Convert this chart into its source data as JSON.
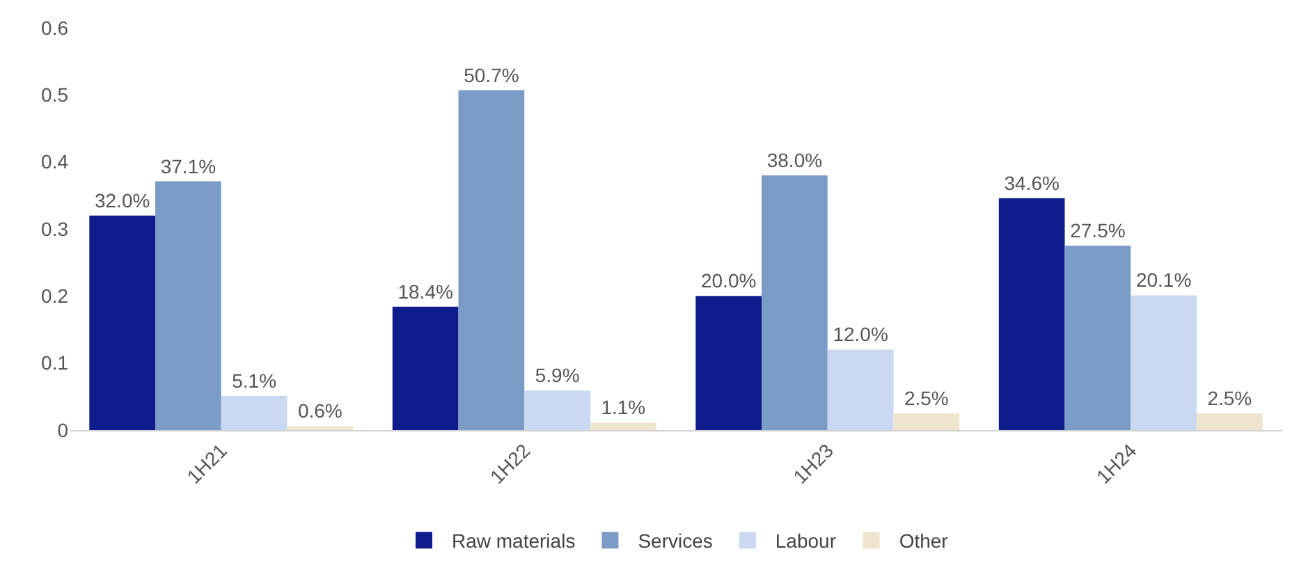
{
  "chart_data": {
    "type": "bar",
    "categories": [
      "1H21",
      "1H22",
      "1H23",
      "1H24"
    ],
    "series": [
      {
        "name": "Raw materials",
        "color": "#0f1c8c",
        "values": [
          0.32,
          0.184,
          0.2,
          0.346
        ],
        "value_labels": [
          "32.0%",
          "18.4%",
          "20.0%",
          "34.6%"
        ]
      },
      {
        "name": "Services",
        "color": "#7b9cc7",
        "values": [
          0.371,
          0.507,
          0.38,
          0.275
        ],
        "value_labels": [
          "37.1%",
          "50.7%",
          "38.0%",
          "27.5%"
        ]
      },
      {
        "name": "Labour",
        "color": "#cad8f1",
        "values": [
          0.051,
          0.059,
          0.12,
          0.201
        ],
        "value_labels": [
          "5.1%",
          "5.9%",
          "12.0%",
          "20.1%"
        ]
      },
      {
        "name": "Other",
        "color": "#efe5cf",
        "values": [
          0.006,
          0.011,
          0.025,
          0.025
        ],
        "value_labels": [
          "0.6%",
          "1.1%",
          "2.5%",
          "2.5%"
        ]
      }
    ],
    "ylim": [
      0,
      0.6
    ],
    "yticks": [
      0,
      0.1,
      0.2,
      0.3,
      0.4,
      0.5,
      0.6
    ],
    "legend": "bottom"
  }
}
